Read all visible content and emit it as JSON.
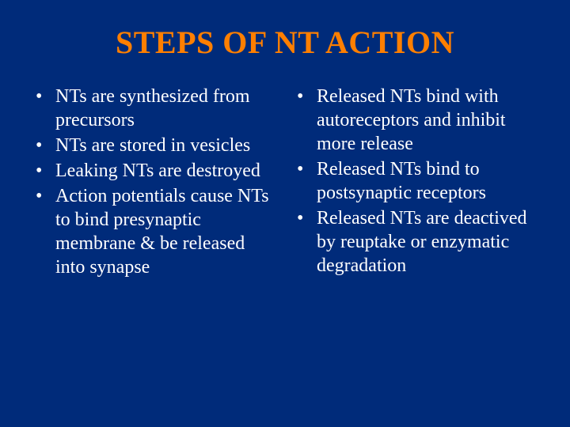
{
  "slide": {
    "title": "STEPS OF NT ACTION",
    "background_color": "#002b7a",
    "title_color": "#ff7f00",
    "text_color": "#ffffff",
    "title_fontsize": 40,
    "body_fontsize": 24,
    "font_family": "Times New Roman",
    "bullet_marker": "•",
    "left_column": {
      "items": [
        "NTs are synthesized from precursors",
        "NTs are stored in vesicles",
        "Leaking NTs are destroyed",
        "Action potentials cause NTs to bind presynaptic membrane & be released into synapse"
      ]
    },
    "right_column": {
      "items": [
        "Released NTs bind with autoreceptors and inhibit more release",
        "Released NTs bind to postsynaptic receptors",
        "Released NTs are deactived by reuptake or enzymatic degradation"
      ]
    }
  }
}
